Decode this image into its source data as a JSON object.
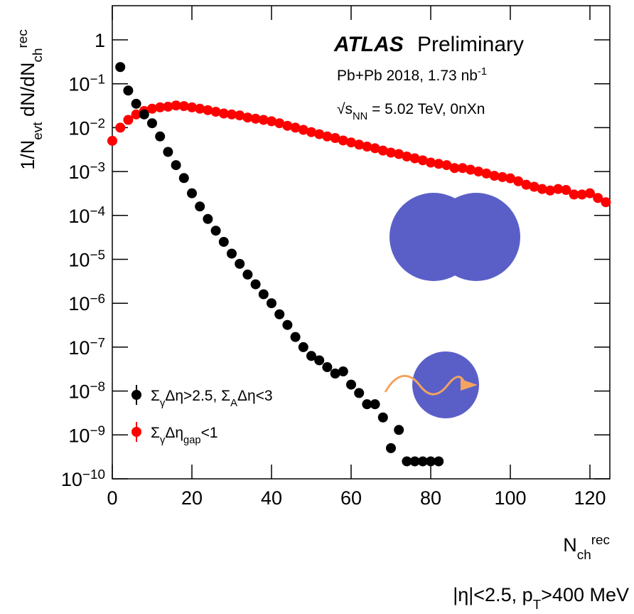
{
  "chart_data": {
    "type": "scatter",
    "ylabel": "1/N_{evt} dN/dN_{ch}^{rec}",
    "xlabel": "N_{ch}^{rec}",
    "annotations": [
      "ATLAS",
      "Preliminary",
      "Pb+Pb 2018, 1.73 nb^{-1}",
      "√s_{NN} = 5.02 TeV, 0nXn",
      "|η|<2.5,  p_{T}>400 MeV"
    ],
    "log_y": true,
    "legend": "bottom-left",
    "xlim": [
      0,
      125
    ],
    "ylim": [
      1e-10,
      6
    ],
    "xticks": [
      0,
      20,
      40,
      60,
      80,
      100,
      120
    ],
    "yticks": [
      1,
      {
        "value": 0.1,
        "label": "10−1"
      },
      {
        "value": 0.01,
        "label": "10−2"
      },
      {
        "value": 0.001,
        "label": "10−3"
      },
      {
        "value": 0.0001,
        "label": "10−4"
      },
      {
        "value": 1e-05,
        "label": "10−5"
      },
      {
        "value": 1e-06,
        "label": "10−6"
      },
      {
        "value": 1e-07,
        "label": "10−7"
      },
      {
        "value": 1e-08,
        "label": "10−8"
      },
      {
        "value": 1e-09,
        "label": "10−9"
      },
      {
        "value": 1e-10,
        "label": "10−10"
      }
    ],
    "x": [
      0,
      2,
      4,
      6,
      8,
      10,
      12,
      14,
      16,
      18,
      20,
      22,
      24,
      26,
      28,
      30,
      32,
      34,
      36,
      38,
      40,
      42,
      44,
      46,
      48,
      50,
      52,
      54,
      56,
      58,
      60,
      62,
      64,
      66,
      68,
      70,
      72,
      74,
      76,
      78,
      80,
      82,
      84,
      86,
      88,
      90,
      92,
      94,
      96,
      98,
      100,
      102,
      104,
      106,
      108,
      110,
      112,
      114,
      116,
      118,
      120,
      122,
      124
    ],
    "series": [
      {
        "name": "Σ_{γ}Δη_{gap}<1",
        "color": "#ff0000",
        "values": [
          0.005,
          0.01,
          0.015,
          0.02,
          0.024,
          0.027,
          0.029,
          0.03,
          0.032,
          0.031,
          0.029,
          0.027,
          0.025,
          0.023,
          0.021,
          0.02,
          0.019,
          0.017,
          0.016,
          0.015,
          0.014,
          0.0126,
          0.011,
          0.01,
          0.0089,
          0.0079,
          0.0071,
          0.0063,
          0.0058,
          0.0051,
          0.0046,
          0.0041,
          0.0037,
          0.0034,
          0.003,
          0.0027,
          0.0025,
          0.0022,
          0.002,
          0.0018,
          0.0016,
          0.0015,
          0.0014,
          0.0012,
          0.0012,
          0.0011,
          0.001,
          0.0009,
          0.0008,
          0.00075,
          0.0007,
          0.0006,
          0.0005,
          0.00045,
          0.0004,
          0.00037,
          0.0004,
          0.00038,
          0.0003,
          0.0003,
          0.00032,
          0.00025,
          0.0002
        ]
      },
      {
        "name": "Σ_{γ}Δη>2.5, Σ_{A}Δη<3",
        "color": "#000000",
        "values": [
          null,
          0.24,
          0.07,
          0.035,
          0.02,
          0.0126,
          0.0063,
          0.0028,
          0.0014,
          0.00071,
          0.00032,
          0.00016,
          8.3e-05,
          4.5e-05,
          2.5e-05,
          1.35e-05,
          7.9e-06,
          4.5e-06,
          2.7e-06,
          1.6e-06,
          1e-06,
          5.6e-07,
          3.2e-07,
          1.7e-07,
          1e-07,
          6.3e-08,
          5e-08,
          3.5e-08,
          2.5e-08,
          2.8e-08,
          1.4e-08,
          9e-09,
          5e-09,
          5e-09,
          2.5e-09,
          5e-10,
          1.3e-09,
          2.5e-10,
          2.5e-10,
          2.5e-10,
          2.5e-10,
          2.5e-10,
          null,
          null,
          null,
          null,
          null,
          null,
          null,
          null,
          null,
          null,
          null,
          null,
          null,
          null,
          null,
          null,
          null,
          null,
          null,
          null,
          null
        ]
      }
    ]
  }
}
